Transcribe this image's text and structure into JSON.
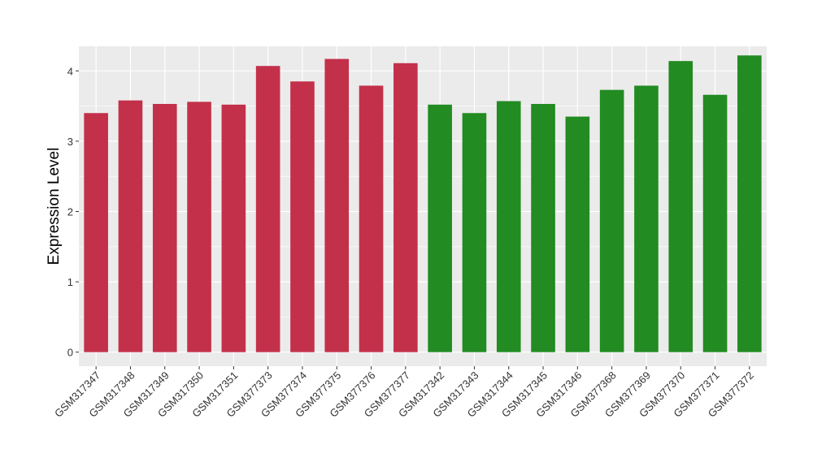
{
  "chart_data": {
    "type": "bar",
    "title": "",
    "xlabel": "",
    "ylabel": "Expression Level",
    "ylim": [
      -0.2,
      4.35
    ],
    "y_ticks": [
      0,
      1,
      2,
      3,
      4
    ],
    "grid": true,
    "categories": [
      "GSM317347",
      "GSM317348",
      "GSM317349",
      "GSM317350",
      "GSM317351",
      "GSM377373",
      "GSM377374",
      "GSM377375",
      "GSM377376",
      "GSM377377",
      "GSM317342",
      "GSM317343",
      "GSM317344",
      "GSM317345",
      "GSM317346",
      "GSM377368",
      "GSM377369",
      "GSM377370",
      "GSM377371",
      "GSM377372"
    ],
    "values": [
      3.4,
      3.58,
      3.53,
      3.56,
      3.52,
      4.07,
      3.85,
      4.17,
      3.79,
      4.11,
      3.52,
      3.4,
      3.57,
      3.53,
      3.35,
      3.73,
      3.79,
      4.14,
      3.66,
      4.22
    ],
    "bar_colors": [
      "#C3304A",
      "#C3304A",
      "#C3304A",
      "#C3304A",
      "#C3304A",
      "#C3304A",
      "#C3304A",
      "#C3304A",
      "#C3304A",
      "#C3304A",
      "#228B22",
      "#228B22",
      "#228B22",
      "#228B22",
      "#228B22",
      "#228B22",
      "#228B22",
      "#228B22",
      "#228B22",
      "#228B22"
    ],
    "panel_background": "#EBEBEB",
    "grid_color": "#FFFFFF"
  }
}
